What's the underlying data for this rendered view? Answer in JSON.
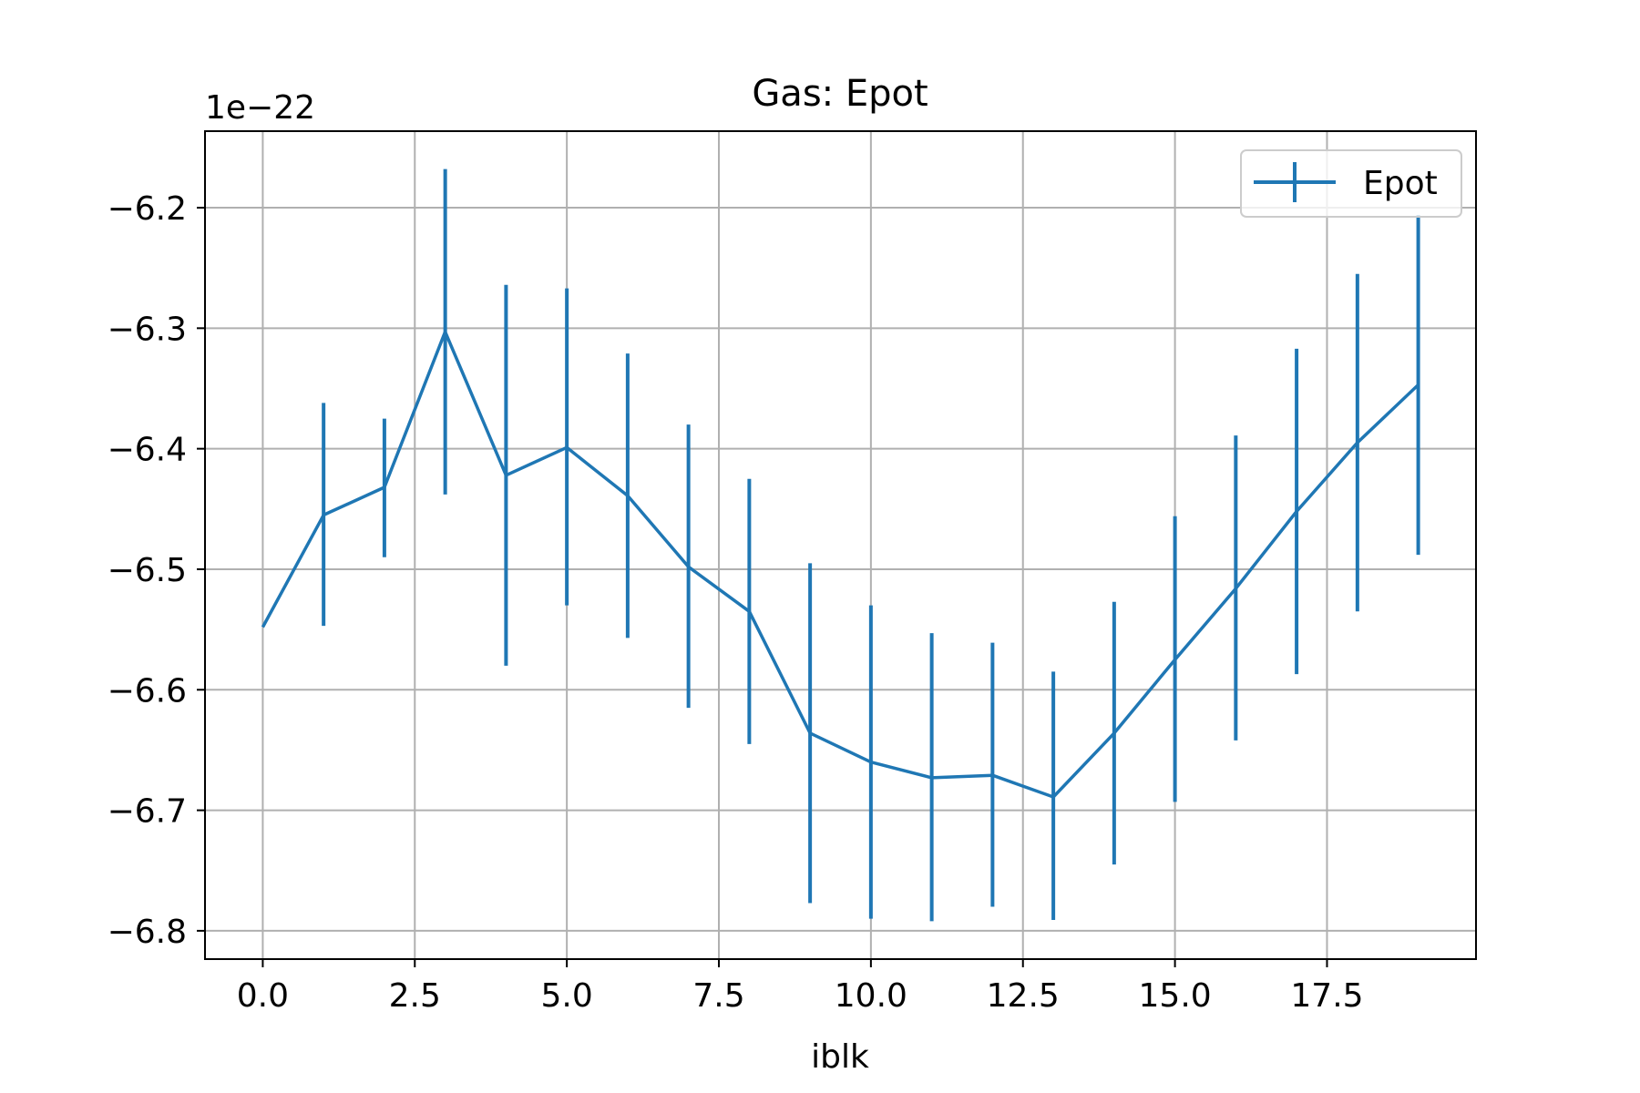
{
  "chart_data": {
    "type": "line",
    "title": "Gas: Epot",
    "xlabel": "iblk",
    "ylabel": "",
    "y_offset_label": "1e−22",
    "xlim": [
      -0.95,
      19.95
    ],
    "ylim": [
      -6.8235,
      -6.1365
    ],
    "xticks": [
      0.0,
      2.5,
      5.0,
      7.5,
      10.0,
      12.5,
      15.0,
      17.5
    ],
    "xtick_labels": [
      "0.0",
      "2.5",
      "5.0",
      "7.5",
      "10.0",
      "12.5",
      "15.0",
      "17.5"
    ],
    "yticks": [
      -6.2,
      -6.3,
      -6.4,
      -6.5,
      -6.6,
      -6.7,
      -6.8
    ],
    "ytick_labels": [
      "−6.2",
      "−6.3",
      "−6.4",
      "−6.5",
      "−6.6",
      "−6.7",
      "−6.8"
    ],
    "grid": true,
    "legend_position": "upper right",
    "colors": {
      "series": "#1f77b4",
      "grid": "#b0b0b0"
    },
    "series": [
      {
        "name": "Epot",
        "x": [
          0,
          1,
          2,
          3,
          4,
          5,
          6,
          7,
          8,
          9,
          10,
          11,
          12,
          13,
          14,
          15,
          16,
          17,
          18,
          19
        ],
        "y": [
          -6.548,
          -6.455,
          -6.432,
          -6.303,
          -6.422,
          -6.399,
          -6.439,
          -6.498,
          -6.535,
          -6.636,
          -6.66,
          -6.673,
          -6.671,
          -6.689,
          -6.636,
          -6.575,
          -6.516,
          -6.452,
          -6.395,
          -6.347
        ],
        "yerr_low": [
          null,
          -6.547,
          -6.49,
          -6.438,
          -6.58,
          -6.53,
          -6.557,
          -6.615,
          -6.645,
          -6.777,
          -6.79,
          -6.792,
          -6.78,
          -6.791,
          -6.745,
          -6.693,
          -6.642,
          -6.587,
          -6.535,
          -6.488
        ],
        "yerr_high": [
          null,
          -6.362,
          -6.375,
          -6.168,
          -6.264,
          -6.267,
          -6.321,
          -6.38,
          -6.425,
          -6.495,
          -6.53,
          -6.553,
          -6.561,
          -6.585,
          -6.527,
          -6.456,
          -6.389,
          -6.317,
          -6.255,
          -6.206
        ]
      }
    ]
  }
}
